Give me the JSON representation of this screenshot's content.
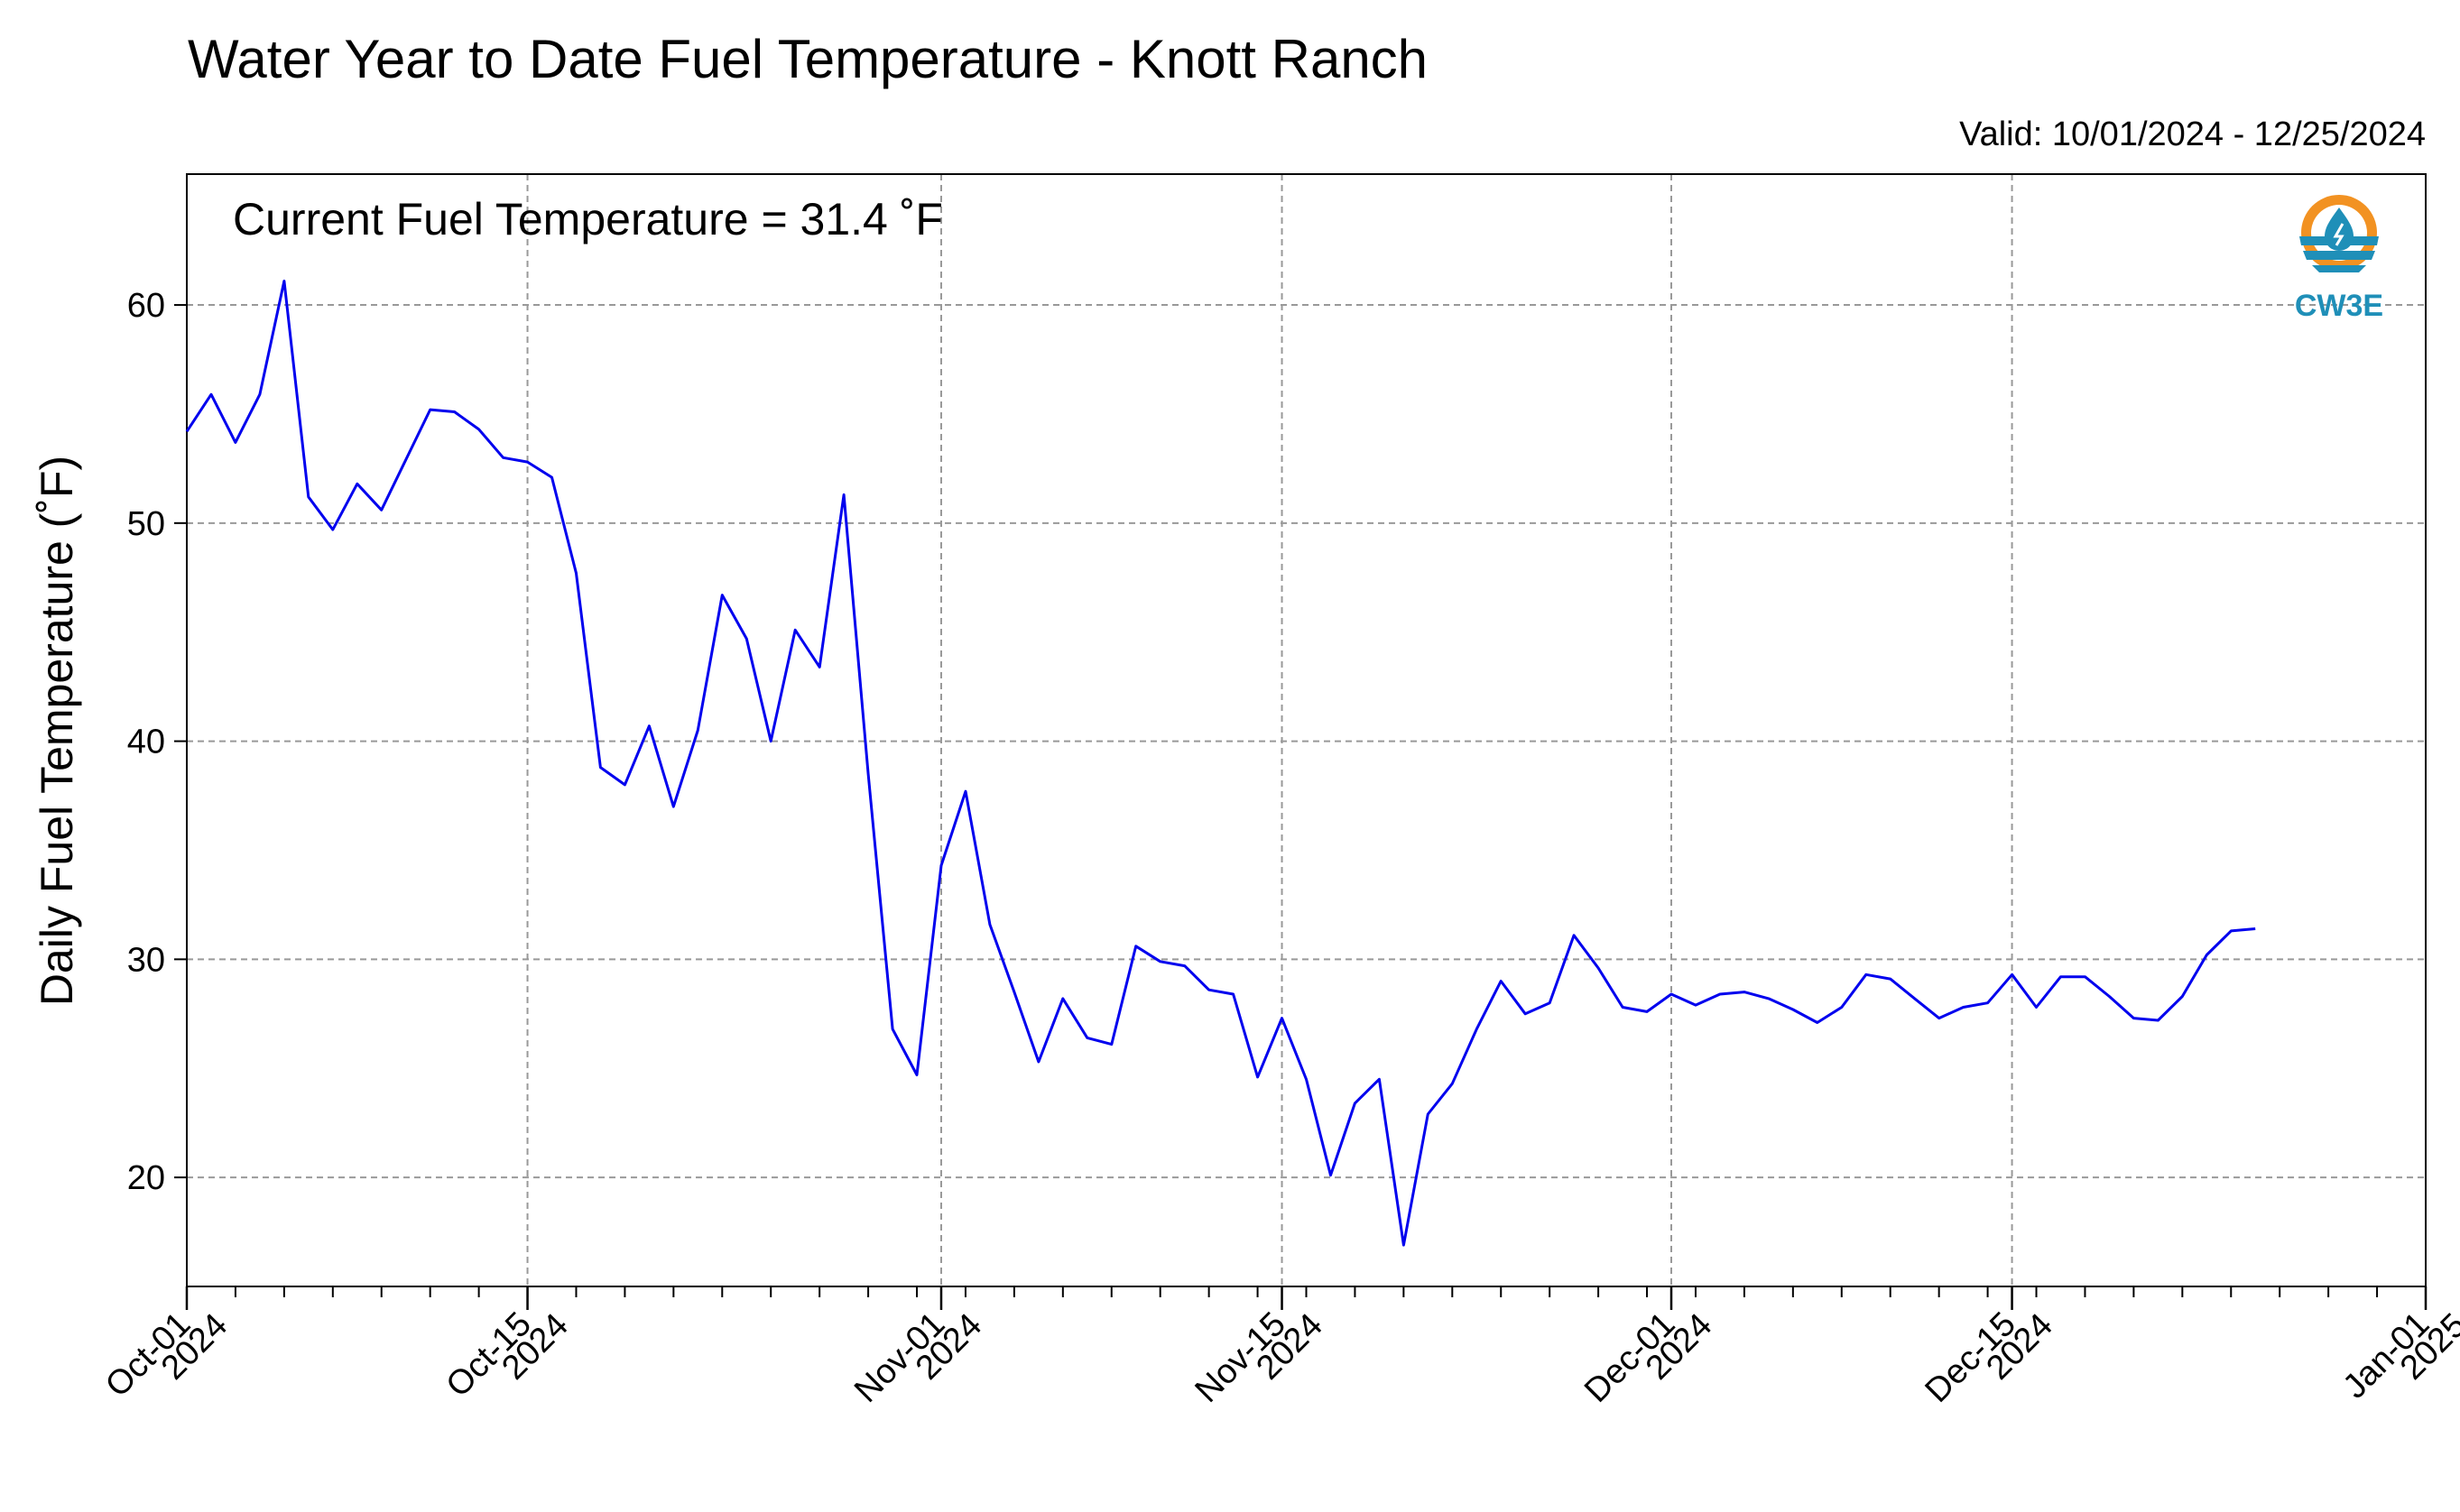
{
  "chart_data": {
    "type": "line",
    "title": "Water Year to Date Fuel Temperature - Knott Ranch",
    "subtitle": "Valid: 10/01/2024 - 12/25/2024",
    "annotation": "Current Fuel Temperature = 31.4 ˚F",
    "xlabel": "",
    "ylabel": "Daily Fuel Temperature (˚F)",
    "ylim": [
      15,
      66
    ],
    "yticks": [
      20,
      30,
      40,
      50,
      60
    ],
    "xlim": [
      "2024-10-01",
      "2025-01-01"
    ],
    "x_tick_labels": [
      {
        "date": "2024-10-01",
        "line1": "Oct-01",
        "line2": "2024"
      },
      {
        "date": "2024-10-15",
        "line1": "Oct-15",
        "line2": "2024"
      },
      {
        "date": "2024-11-01",
        "line1": "Nov-01",
        "line2": "2024"
      },
      {
        "date": "2024-11-15",
        "line1": "Nov-15",
        "line2": "2024"
      },
      {
        "date": "2024-12-01",
        "line1": "Dec-01",
        "line2": "2024"
      },
      {
        "date": "2024-12-15",
        "line1": "Dec-15",
        "line2": "2024"
      },
      {
        "date": "2025-01-01",
        "line1": "Jan-01",
        "line2": "2025"
      }
    ],
    "grid": true,
    "line_color": "#0000ee",
    "series": [
      {
        "x": [
          "2024-10-01",
          "2024-10-02",
          "2024-10-03",
          "2024-10-04",
          "2024-10-05",
          "2024-10-06",
          "2024-10-07",
          "2024-10-08",
          "2024-10-09",
          "2024-10-10",
          "2024-10-11",
          "2024-10-12",
          "2024-10-13",
          "2024-10-14",
          "2024-10-15",
          "2024-10-16",
          "2024-10-17",
          "2024-10-18",
          "2024-10-19",
          "2024-10-20",
          "2024-10-21",
          "2024-10-22",
          "2024-10-23",
          "2024-10-24",
          "2024-10-25",
          "2024-10-26",
          "2024-10-27",
          "2024-10-28",
          "2024-10-29",
          "2024-10-30",
          "2024-10-31",
          "2024-11-01",
          "2024-11-02",
          "2024-11-03",
          "2024-11-04",
          "2024-11-05",
          "2024-11-06",
          "2024-11-07",
          "2024-11-08",
          "2024-11-09",
          "2024-11-10",
          "2024-11-11",
          "2024-11-12",
          "2024-11-13",
          "2024-11-14",
          "2024-11-15",
          "2024-11-16",
          "2024-11-17",
          "2024-11-18",
          "2024-11-19",
          "2024-11-20",
          "2024-11-21",
          "2024-11-22",
          "2024-11-23",
          "2024-11-24",
          "2024-11-25",
          "2024-11-26",
          "2024-11-27",
          "2024-11-28",
          "2024-11-29",
          "2024-11-30",
          "2024-12-01",
          "2024-12-02",
          "2024-12-03",
          "2024-12-04",
          "2024-12-05",
          "2024-12-06",
          "2024-12-07",
          "2024-12-08",
          "2024-12-09",
          "2024-12-10",
          "2024-12-11",
          "2024-12-12",
          "2024-12-13",
          "2024-12-14",
          "2024-12-15",
          "2024-12-16",
          "2024-12-17",
          "2024-12-18",
          "2024-12-19",
          "2024-12-20",
          "2024-12-21",
          "2024-12-22",
          "2024-12-23",
          "2024-12-24",
          "2024-12-25"
        ],
        "y": [
          54.2,
          55.9,
          53.7,
          55.9,
          61.1,
          51.2,
          49.7,
          51.8,
          50.6,
          52.9,
          55.2,
          55.1,
          54.3,
          53.0,
          52.8,
          52.1,
          47.7,
          38.8,
          38.0,
          40.7,
          37.0,
          40.5,
          46.7,
          44.7,
          40.0,
          45.1,
          43.4,
          51.3,
          38.5,
          26.8,
          24.7,
          34.3,
          37.7,
          31.6,
          28.5,
          25.3,
          28.2,
          26.4,
          26.1,
          30.6,
          29.9,
          29.7,
          28.6,
          28.4,
          24.6,
          27.3,
          24.5,
          20.1,
          23.4,
          24.5,
          16.9,
          22.9,
          24.3,
          26.8,
          29.0,
          27.5,
          28.0,
          31.1,
          29.6,
          27.8,
          27.6,
          28.4,
          27.9,
          28.4,
          28.5,
          28.2,
          27.7,
          27.1,
          27.8,
          29.3,
          29.1,
          28.2,
          27.3,
          27.8,
          28.0,
          29.3,
          27.8,
          29.2,
          29.2,
          28.3,
          27.3,
          27.2,
          28.3,
          30.2,
          31.3,
          31.4
        ]
      }
    ]
  },
  "logo": {
    "text": "CW3E",
    "icon": "cw3e-logo-icon",
    "colors": {
      "ring": "#f29222",
      "water": "#1f8fb8",
      "drop": "#1f8fb8"
    }
  }
}
